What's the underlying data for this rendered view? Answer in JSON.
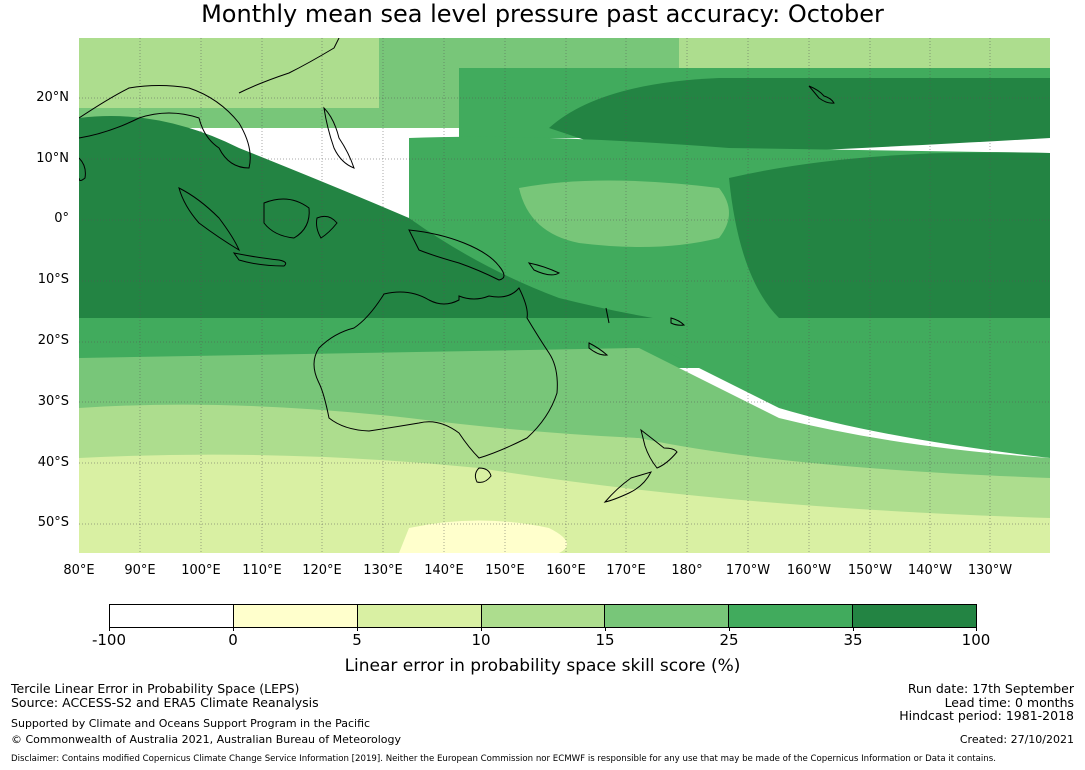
{
  "title": "Monthly mean sea level pressure past accuracy: October",
  "palette": {
    "c0": "#ffffff",
    "c1": "#ffffcc",
    "c2": "#d9f0a3",
    "c3": "#addd8e",
    "c4": "#78c679",
    "c5": "#41ab5d",
    "c6": "#238443",
    "coast": "#000000",
    "grid": "#555555"
  },
  "map": {
    "lat_labels": [
      "20°N",
      "10°N",
      "0°",
      "10°S",
      "20°S",
      "30°S",
      "40°S",
      "50°S"
    ],
    "lon_labels": [
      "80°E",
      "90°E",
      "100°E",
      "110°E",
      "120°E",
      "130°E",
      "140°E",
      "150°E",
      "160°E",
      "170°E",
      "180°",
      "170°W",
      "160°W",
      "150°W",
      "140°W",
      "130°W"
    ]
  },
  "colorbar": {
    "ticks": [
      "-100",
      "0",
      "5",
      "10",
      "15",
      "25",
      "35",
      "100"
    ],
    "label": "Linear error in probability space skill score (%)"
  },
  "footer": {
    "left_line1": "Tercile Linear Error in Probability Space (LEPS)",
    "left_line2": "Source: ACCESS-S2 and ERA5 Climate Reanalysis",
    "left_line3": "Supported by Climate and Oceans Support Program in the Pacific",
    "left_line4": "© Commonwealth of Australia 2021, Australian Bureau of Meteorology",
    "run_date": "Run date: 17th September",
    "lead_time": "Lead time: 0 months",
    "hindcast": "Hindcast period: 1981-2018",
    "created": "Created: 27/10/2021",
    "disclaimer": "Disclaimer: Contains modified Copernicus Climate Change Service Information [2019]. Neither the European Commission nor ECMWF is responsible for any use that may be made of the Copernicus Information or Data it contains."
  }
}
